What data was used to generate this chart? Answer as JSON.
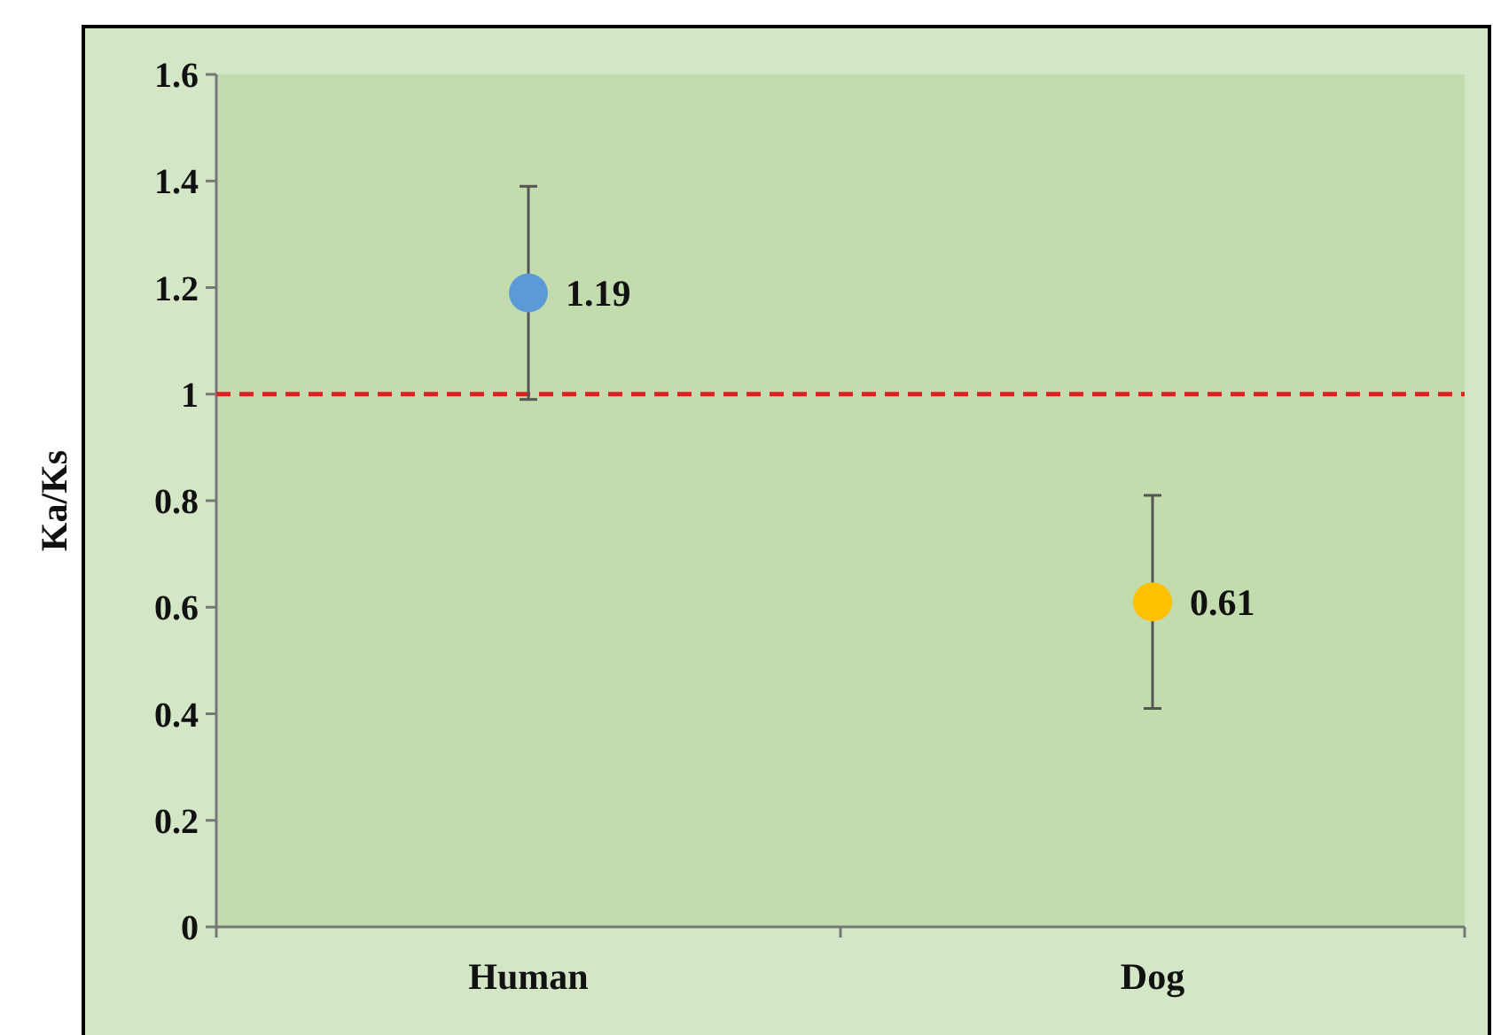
{
  "chart_data": {
    "type": "scatter",
    "ylabel": "Ka/Ks",
    "categories": [
      "Human",
      "Dog"
    ],
    "values": [
      1.19,
      0.61
    ],
    "colors": [
      "#5b9bd5",
      "#ffc000"
    ],
    "errors": [
      0.2,
      0.2
    ],
    "data_labels": true,
    "marker": "circle",
    "ref_lines": [
      {
        "axis": "y",
        "value": 1,
        "color": "#e02020",
        "line_style": "dashed"
      }
    ],
    "ylim": [
      0,
      1.6
    ],
    "yticks": [
      0,
      0.2,
      0.4,
      0.6,
      0.8,
      1,
      1.2,
      1.4,
      1.6
    ],
    "grid": false
  }
}
